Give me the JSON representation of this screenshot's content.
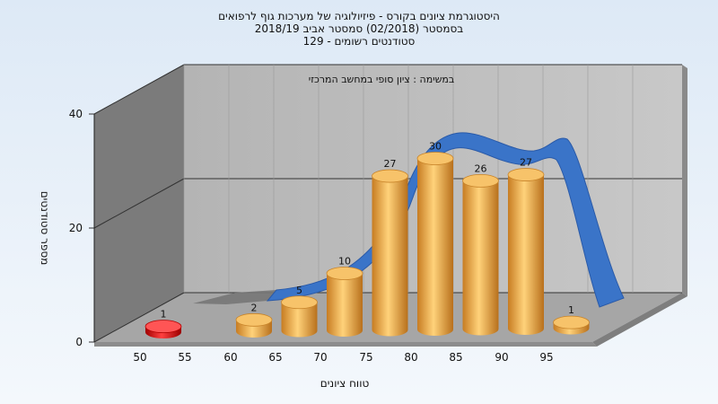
{
  "chart_data": {
    "type": "bar",
    "title_lines": [
      "היסטוגרמת ציונים בקורס - פיזיולוגיה של מערכות גוף לרפואים",
      "בסמסטר  (02/2018)  סמסטר אביב 2018/19",
      "סטודנטים רשומים - 129"
    ],
    "annotation": "במשימה : ציון סופי במחשב המרכזי",
    "xlabel": "טווח ציונים",
    "ylabel": "מספר סטודנטים",
    "x_ticks": [
      "50",
      "55",
      "60",
      "65",
      "70",
      "75",
      "80",
      "85",
      "90",
      "95"
    ],
    "y_ticks": [
      "0",
      "20",
      "40"
    ],
    "ylim": [
      0,
      40
    ],
    "categories": [
      "50",
      "55",
      "60",
      "65",
      "70",
      "75",
      "80",
      "85",
      "90",
      "95"
    ],
    "values": [
      1,
      null,
      2,
      5,
      10,
      27,
      30,
      26,
      27,
      1
    ],
    "bar_colors": {
      "fail": "#e00000",
      "pass": "#f0a53c"
    },
    "curve_color": "#3a74c8",
    "grid": true,
    "legend": "none"
  }
}
